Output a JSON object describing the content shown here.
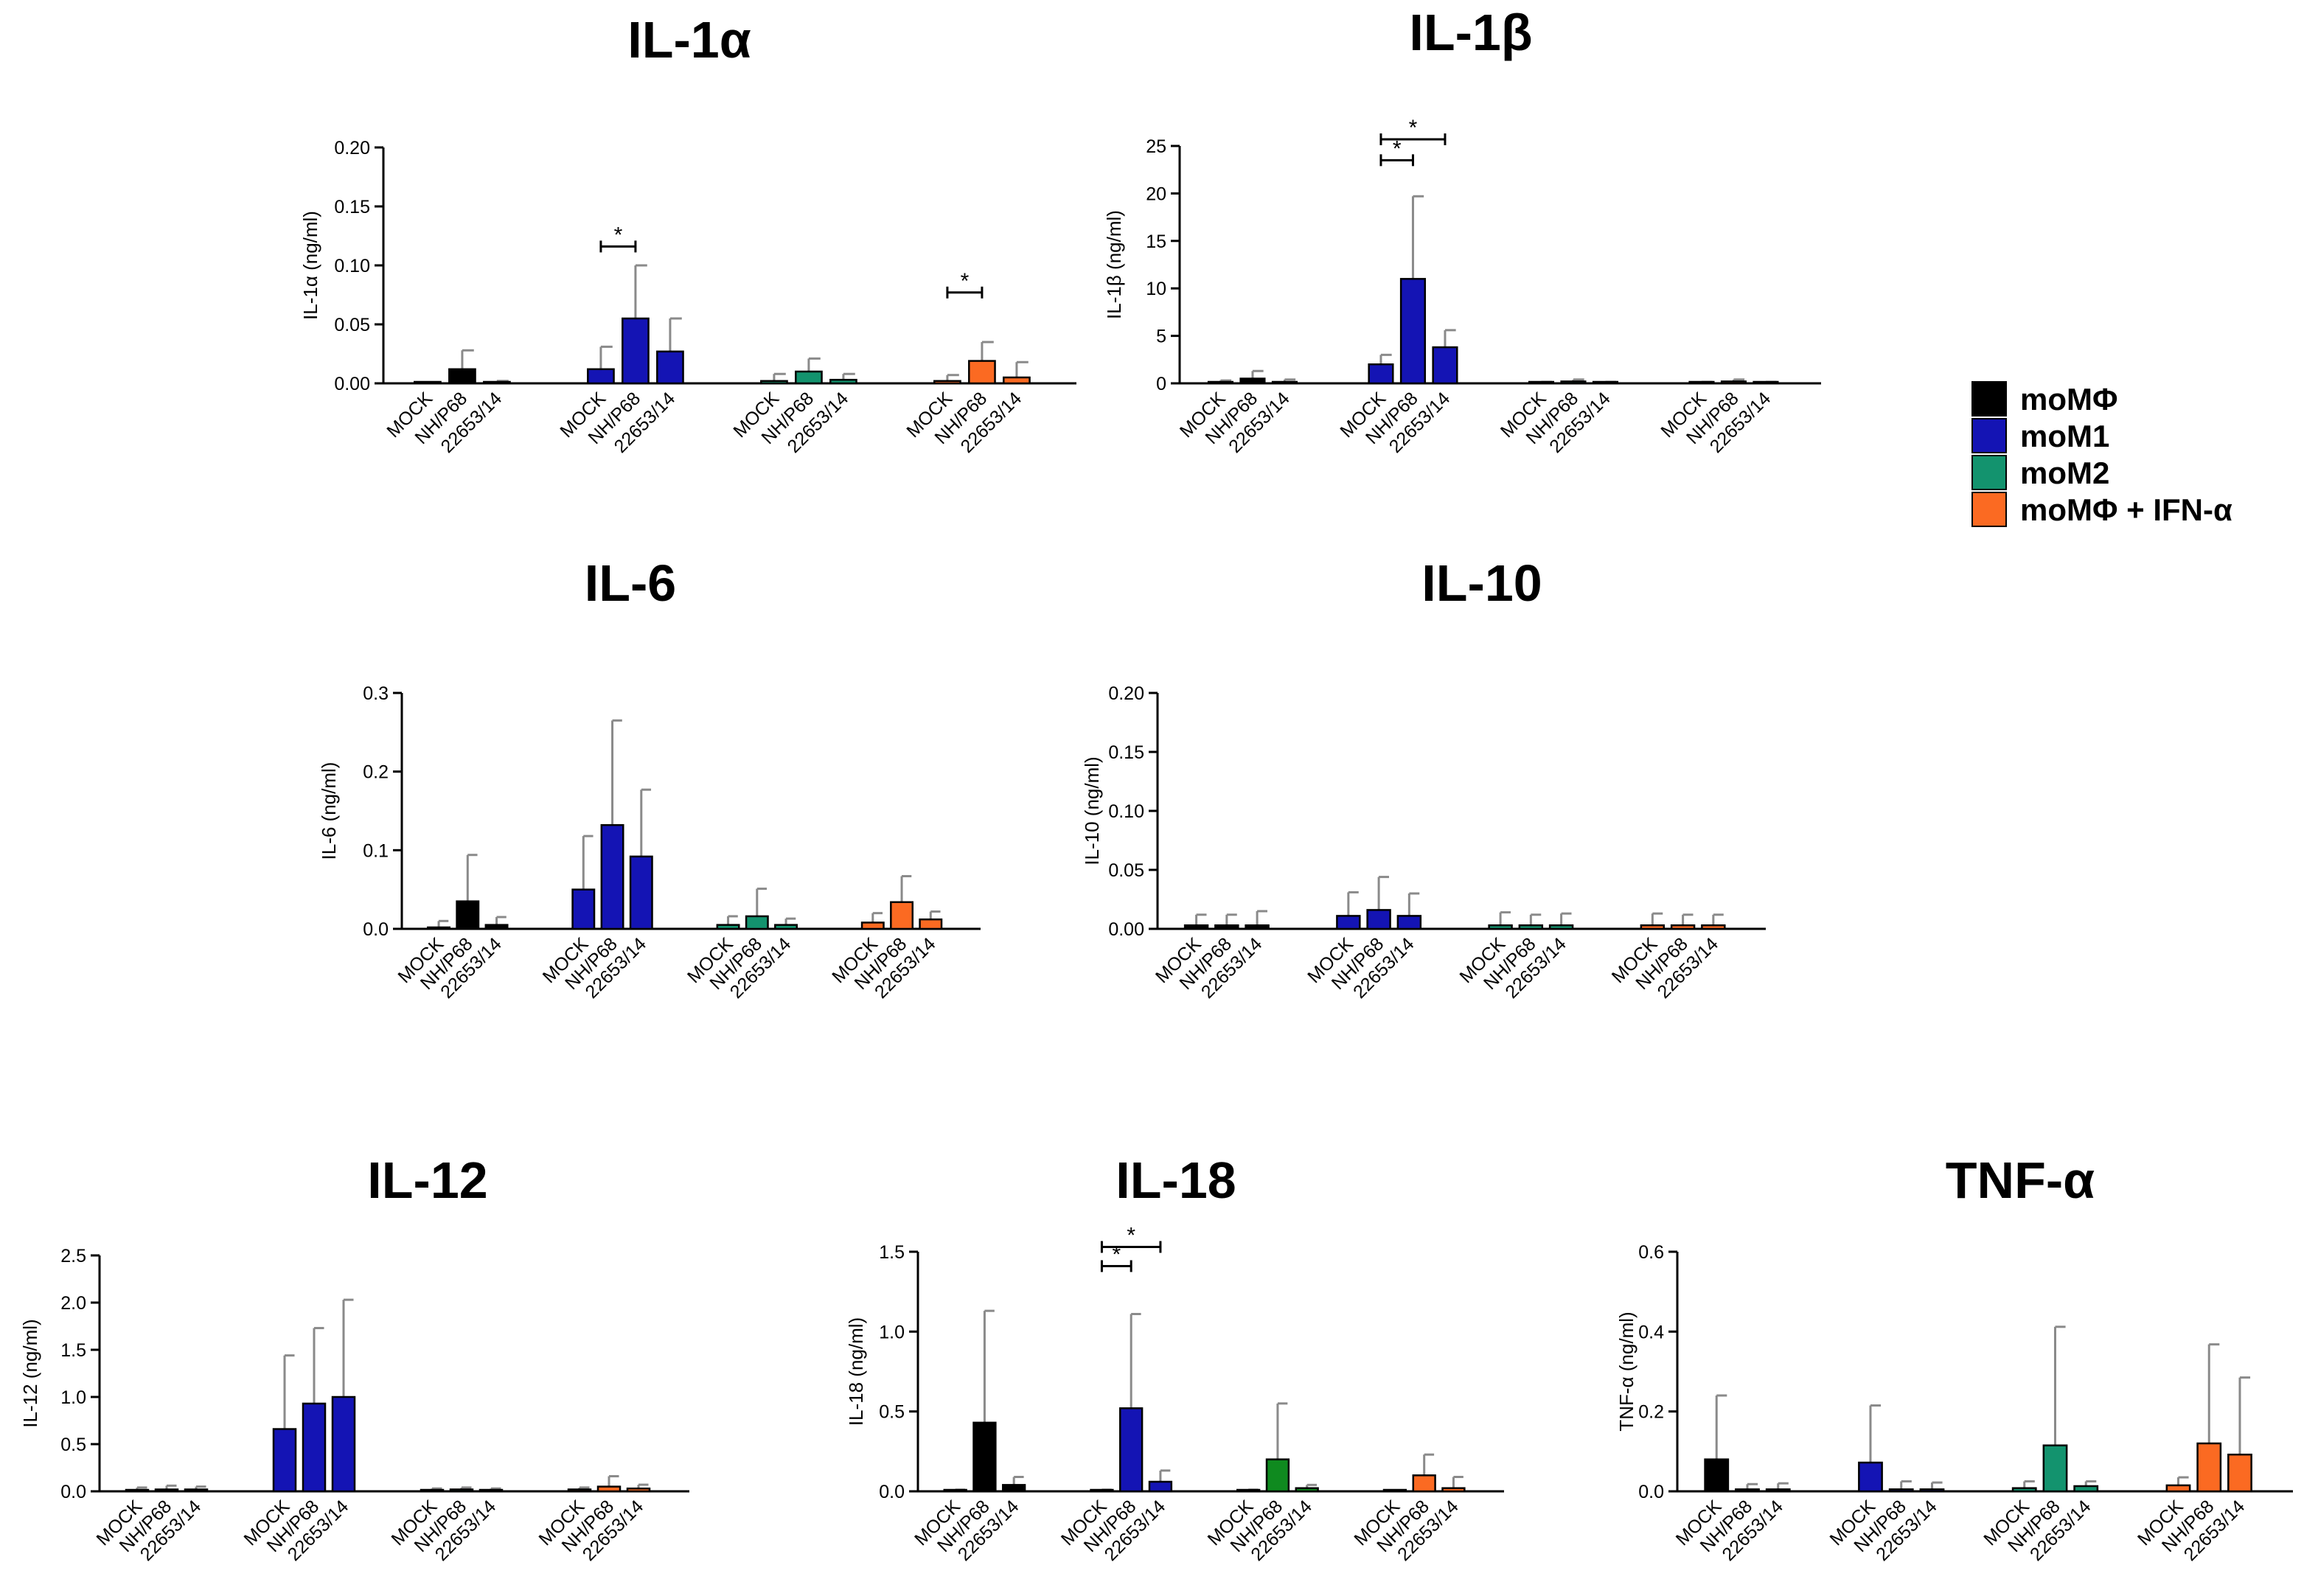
{
  "colors": {
    "moMPhi": "#000000",
    "moM1": "#1414b4",
    "moM2": "#13936e",
    "moMPhi_IFN": "#fb6a22",
    "moM2_il18": "#0f8a1f",
    "error": "#8a8a8a"
  },
  "legend": [
    {
      "label": "moMΦ",
      "color_key": "moMPhi"
    },
    {
      "label": "moM1",
      "color_key": "moM1"
    },
    {
      "label": "moM2",
      "color_key": "moM2"
    },
    {
      "label": "moMΦ + IFN-α",
      "color_key": "moMPhi_IFN"
    }
  ],
  "categories": [
    "MOCK",
    "NH/P68",
    "22653/14"
  ],
  "groups": [
    "moMPhi",
    "moM1",
    "moM2",
    "moMPhi_IFN"
  ],
  "chart_data": [
    {
      "type": "bar",
      "id": "il1a",
      "title": "IL-1α",
      "ylabel": "IL-1α (ng/ml)",
      "ylim": [
        0,
        0.2
      ],
      "yticks": [
        "0.00",
        "0.05",
        "0.10",
        "0.15",
        "0.20"
      ],
      "series": [
        {
          "name": "moMΦ",
          "color_key": "moMPhi",
          "values": [
            0.0,
            0.012,
            0.001
          ],
          "errors": [
            0.0,
            0.016,
            0.001
          ]
        },
        {
          "name": "moM1",
          "color_key": "moM1",
          "values": [
            0.012,
            0.055,
            0.027
          ],
          "errors": [
            0.019,
            0.045,
            0.028
          ]
        },
        {
          "name": "moM2",
          "color_key": "moM2",
          "values": [
            0.002,
            0.01,
            0.003
          ],
          "errors": [
            0.006,
            0.011,
            0.005
          ]
        },
        {
          "name": "moMΦ + IFN-α",
          "color_key": "moMPhi_IFN",
          "values": [
            0.002,
            0.019,
            0.005
          ],
          "errors": [
            0.005,
            0.016,
            0.013
          ]
        }
      ],
      "significance": [
        {
          "group": 1,
          "from": 0,
          "to": 1,
          "label": "*",
          "y": 0.116
        },
        {
          "group": 3,
          "from": 0,
          "to": 1,
          "label": "*",
          "y": 0.077
        }
      ]
    },
    {
      "type": "bar",
      "id": "il1b",
      "title": "IL-1β",
      "ylabel": "IL-1β (ng/ml)",
      "ylim": [
        0,
        25
      ],
      "yticks": [
        "0",
        "5",
        "10",
        "15",
        "20",
        "25"
      ],
      "series": [
        {
          "name": "moMΦ",
          "color_key": "moMPhi",
          "values": [
            0.1,
            0.5,
            0.1
          ],
          "errors": [
            0.2,
            0.8,
            0.3
          ]
        },
        {
          "name": "moM1",
          "color_key": "moM1",
          "values": [
            2.0,
            11.0,
            3.8
          ],
          "errors": [
            1.0,
            8.7,
            1.8
          ]
        },
        {
          "name": "moM2",
          "color_key": "moM2",
          "values": [
            0.05,
            0.2,
            0.05
          ],
          "errors": [
            0.1,
            0.2,
            0.1
          ]
        },
        {
          "name": "moMΦ + IFN-α",
          "color_key": "moMPhi_IFN",
          "values": [
            0.05,
            0.2,
            0.05
          ],
          "errors": [
            0.1,
            0.2,
            0.1
          ]
        }
      ],
      "significance": [
        {
          "group": 1,
          "from": 0,
          "to": 1,
          "label": "*",
          "y": 23.5
        },
        {
          "group": 1,
          "from": 0,
          "to": 2,
          "label": "*",
          "y": 25.7
        }
      ]
    },
    {
      "type": "bar",
      "id": "il6",
      "title": "IL-6",
      "ylabel": "IL-6 (ng/ml)",
      "ylim": [
        0,
        0.3
      ],
      "yticks": [
        "0.0",
        "0.1",
        "0.2",
        "0.3"
      ],
      "series": [
        {
          "name": "moMΦ",
          "color_key": "moMPhi",
          "values": [
            0.0,
            0.035,
            0.005
          ],
          "errors": [
            0.01,
            0.059,
            0.01
          ]
        },
        {
          "name": "moM1",
          "color_key": "moM1",
          "values": [
            0.05,
            0.132,
            0.092
          ],
          "errors": [
            0.068,
            0.133,
            0.085
          ]
        },
        {
          "name": "moM2",
          "color_key": "moM2",
          "values": [
            0.005,
            0.016,
            0.005
          ],
          "errors": [
            0.011,
            0.035,
            0.008
          ]
        },
        {
          "name": "moMΦ + IFN-α",
          "color_key": "moMPhi_IFN",
          "values": [
            0.008,
            0.034,
            0.012
          ],
          "errors": [
            0.012,
            0.033,
            0.01
          ]
        }
      ],
      "significance": []
    },
    {
      "type": "bar",
      "id": "il10",
      "title": "IL-10",
      "ylabel": "IL-10 (ng/ml)",
      "ylim": [
        0,
        0.2
      ],
      "yticks": [
        "0.00",
        "0.05",
        "0.10",
        "0.15",
        "0.20"
      ],
      "series": [
        {
          "name": "moMΦ",
          "color_key": "moMPhi",
          "values": [
            0.003,
            0.003,
            0.003
          ],
          "errors": [
            0.009,
            0.009,
            0.012
          ]
        },
        {
          "name": "moM1",
          "color_key": "moM1",
          "values": [
            0.011,
            0.016,
            0.011
          ],
          "errors": [
            0.02,
            0.028,
            0.019
          ]
        },
        {
          "name": "moM2",
          "color_key": "moM2",
          "values": [
            0.003,
            0.003,
            0.003
          ],
          "errors": [
            0.011,
            0.009,
            0.01
          ]
        },
        {
          "name": "moMΦ + IFN-α",
          "color_key": "moMPhi_IFN",
          "values": [
            0.003,
            0.003,
            0.003
          ],
          "errors": [
            0.01,
            0.009,
            0.009
          ]
        }
      ],
      "significance": []
    },
    {
      "type": "bar",
      "id": "il12",
      "title": "IL-12",
      "ylabel": "IL-12 (ng/ml)",
      "ylim": [
        0,
        2.5
      ],
      "yticks": [
        "0.0",
        "0.5",
        "1.0",
        "1.5",
        "2.0",
        "2.5"
      ],
      "series": [
        {
          "name": "moMΦ",
          "color_key": "moMPhi",
          "values": [
            0.01,
            0.02,
            0.02
          ],
          "errors": [
            0.03,
            0.04,
            0.03
          ]
        },
        {
          "name": "moM1",
          "color_key": "moM1",
          "values": [
            0.66,
            0.93,
            1.0
          ],
          "errors": [
            0.78,
            0.8,
            1.03
          ]
        },
        {
          "name": "moM2",
          "color_key": "moM2",
          "values": [
            0.01,
            0.02,
            0.01
          ],
          "errors": [
            0.02,
            0.02,
            0.02
          ]
        },
        {
          "name": "moMΦ + IFN-α",
          "color_key": "moMPhi_IFN",
          "values": [
            0.02,
            0.05,
            0.03
          ],
          "errors": [
            0.02,
            0.11,
            0.04
          ]
        }
      ],
      "significance": []
    },
    {
      "type": "bar",
      "id": "il18",
      "title": "IL-18",
      "ylabel": "IL-18 (ng/ml)",
      "ylim": [
        0,
        1.5
      ],
      "yticks": [
        "0.0",
        "0.5",
        "1.0",
        "1.5"
      ],
      "series": [
        {
          "name": "moMΦ",
          "color_key": "moMPhi",
          "values": [
            0.0,
            0.43,
            0.04
          ],
          "errors": [
            0.01,
            0.7,
            0.05
          ]
        },
        {
          "name": "moM1",
          "color_key": "moM1",
          "values": [
            0.0,
            0.52,
            0.06
          ],
          "errors": [
            0.01,
            0.59,
            0.07
          ]
        },
        {
          "name": "moM2",
          "color_key": "moM2_il18",
          "values": [
            0.0,
            0.2,
            0.02
          ],
          "errors": [
            0.01,
            0.35,
            0.02
          ]
        },
        {
          "name": "moMΦ + IFN-α",
          "color_key": "moMPhi_IFN",
          "values": [
            0.0,
            0.1,
            0.02
          ],
          "errors": [
            0.0,
            0.13,
            0.07
          ]
        }
      ],
      "significance": [
        {
          "group": 1,
          "from": 0,
          "to": 1,
          "label": "*",
          "y": 1.41
        },
        {
          "group": 1,
          "from": 0,
          "to": 2,
          "label": "*",
          "y": 1.53
        }
      ]
    },
    {
      "type": "bar",
      "id": "tnfa",
      "title": "TNF-α",
      "ylabel": "TNF-α (ng/ml)",
      "ylim": [
        0,
        0.6
      ],
      "yticks": [
        "0.0",
        "0.2",
        "0.4",
        "0.6"
      ],
      "series": [
        {
          "name": "moMΦ",
          "color_key": "moMPhi",
          "values": [
            0.08,
            0.005,
            0.005
          ],
          "errors": [
            0.16,
            0.013,
            0.015
          ]
        },
        {
          "name": "moM1",
          "color_key": "moM1",
          "values": [
            0.072,
            0.005,
            0.005
          ],
          "errors": [
            0.143,
            0.02,
            0.017
          ]
        },
        {
          "name": "moM2",
          "color_key": "moM2",
          "values": [
            0.008,
            0.115,
            0.013
          ],
          "errors": [
            0.017,
            0.297,
            0.012
          ]
        },
        {
          "name": "moMΦ + IFN-α",
          "color_key": "moMPhi_IFN",
          "values": [
            0.015,
            0.12,
            0.092
          ],
          "errors": [
            0.02,
            0.248,
            0.193
          ]
        }
      ],
      "significance": []
    }
  ]
}
